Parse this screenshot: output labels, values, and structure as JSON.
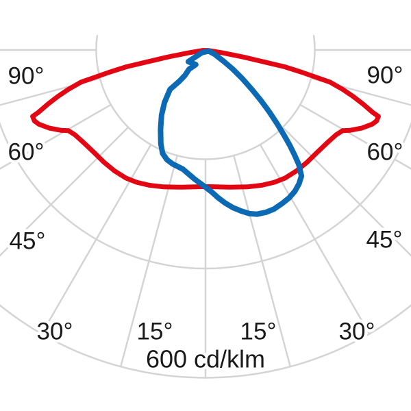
{
  "chart_data": {
    "type": "polar-luminous-intensity",
    "caption": "600 cd/klm",
    "unit": "cd/klm",
    "rings_cd": [
      200,
      400,
      600
    ],
    "angle_ticks_deg": [
      0,
      15,
      30,
      45,
      60,
      75,
      90
    ],
    "grid_color": "#d4d4d4",
    "text_color": "#1a1a1a",
    "background": "#ffffff",
    "angle_labels": [
      {
        "side": "left",
        "text": "90°"
      },
      {
        "side": "left",
        "text": "60°"
      },
      {
        "side": "left",
        "text": "45°"
      },
      {
        "side": "left",
        "text": "30°"
      },
      {
        "side": "left",
        "text": "15°"
      },
      {
        "side": "right",
        "text": "90°"
      },
      {
        "side": "right",
        "text": "60°"
      },
      {
        "side": "right",
        "text": "45°"
      },
      {
        "side": "right",
        "text": "30°"
      },
      {
        "side": "right",
        "text": "15°"
      }
    ],
    "series": [
      {
        "name": "red-curve",
        "color": "#e30613",
        "stroke_width": 7,
        "points_deg_cd": [
          [
            -81,
            5
          ],
          [
            -80.5,
            32
          ],
          [
            -79.5,
            70
          ],
          [
            -78.5,
            109
          ],
          [
            -78,
            148
          ],
          [
            -77,
            181
          ],
          [
            -75.5,
            236
          ],
          [
            -74,
            261
          ],
          [
            -72.5,
            284
          ],
          [
            -71,
            306
          ],
          [
            -69.5,
            327
          ],
          [
            -69,
            339
          ],
          [
            -67.5,
            339
          ],
          [
            -66,
            334
          ],
          [
            -63.5,
            320
          ],
          [
            -61,
            303
          ],
          [
            -59.5,
            291
          ],
          [
            -57,
            285
          ],
          [
            -52.5,
            280
          ],
          [
            -47,
            277
          ],
          [
            -42,
            277
          ],
          [
            -37,
            277
          ],
          [
            -32,
            276
          ],
          [
            -27.5,
            273
          ],
          [
            -22.5,
            268
          ],
          [
            -17,
            262
          ],
          [
            -10,
            255
          ],
          [
            0,
            250
          ],
          [
            10,
            255
          ],
          [
            17,
            262
          ],
          [
            22.5,
            268
          ],
          [
            27.5,
            273
          ],
          [
            32,
            276
          ],
          [
            37,
            277
          ],
          [
            42,
            277
          ],
          [
            47,
            277
          ],
          [
            52.5,
            280
          ],
          [
            57,
            285
          ],
          [
            59.5,
            291
          ],
          [
            61,
            303
          ],
          [
            63.5,
            320
          ],
          [
            66,
            334
          ],
          [
            67.5,
            339
          ],
          [
            69,
            339
          ],
          [
            69.5,
            327
          ],
          [
            71,
            306
          ],
          [
            72.5,
            284
          ],
          [
            74,
            261
          ],
          [
            75.5,
            236
          ],
          [
            77,
            181
          ],
          [
            78,
            148
          ],
          [
            78.5,
            109
          ],
          [
            79.5,
            70
          ],
          [
            80.5,
            32
          ],
          [
            81,
            5
          ]
        ]
      },
      {
        "name": "blue-curve",
        "color": "#0c69b3",
        "stroke_width": 8,
        "points_deg_cd": [
          [
            -54,
            8
          ],
          [
            -55.5,
            24
          ],
          [
            -55.8,
            38
          ],
          [
            -33.7,
            32
          ],
          [
            -40.6,
            46
          ],
          [
            -39,
            60
          ],
          [
            -40,
            75
          ],
          [
            -42,
            97
          ],
          [
            -38,
            122
          ],
          [
            -34,
            144
          ],
          [
            -29.5,
            167
          ],
          [
            -25.5,
            190
          ],
          [
            -22.5,
            205
          ],
          [
            -19.3,
            213
          ],
          [
            -16.1,
            217
          ],
          [
            -10.7,
            222
          ],
          [
            -4.9,
            237
          ],
          [
            0,
            251
          ],
          [
            2.5,
            260
          ],
          [
            4.8,
            271
          ],
          [
            7.2,
            282
          ],
          [
            9.9,
            293
          ],
          [
            12.5,
            302
          ],
          [
            15,
            310
          ],
          [
            17.4,
            315
          ],
          [
            20.4,
            317
          ],
          [
            23.3,
            317
          ],
          [
            26.6,
            314
          ],
          [
            29.5,
            311
          ],
          [
            32.3,
            306
          ],
          [
            34.9,
            299
          ],
          [
            37.3,
            290
          ],
          [
            39.2,
            270
          ],
          [
            40.3,
            252
          ],
          [
            41.5,
            233
          ],
          [
            42.8,
            210
          ],
          [
            44.2,
            188
          ],
          [
            45.9,
            162
          ],
          [
            47.6,
            138
          ],
          [
            49.6,
            112
          ],
          [
            52.1,
            86
          ],
          [
            55,
            61
          ],
          [
            58.4,
            38
          ],
          [
            65.2,
            18
          ],
          [
            72,
            6
          ]
        ]
      }
    ]
  }
}
